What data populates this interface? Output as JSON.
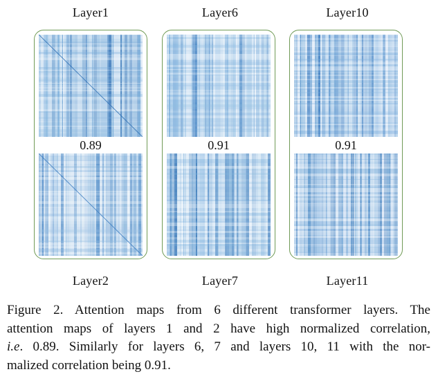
{
  "figure": {
    "pairs": [
      {
        "top_layer": "Layer1",
        "bottom_layer": "Layer2",
        "correlation": "0.89",
        "top_colors": {
          "light": "#e4eef8",
          "mid": "#7fb1dc",
          "dark": "#2d6fb4"
        },
        "bottom_colors": {
          "light": "#e9f1f9",
          "mid": "#9ac1e3",
          "dark": "#3a7cc0"
        }
      },
      {
        "top_layer": "Layer6",
        "bottom_layer": "Layer7",
        "correlation": "0.91",
        "top_colors": {
          "light": "#e6f0f9",
          "mid": "#8dbbe2",
          "dark": "#3a7cc0"
        },
        "bottom_colors": {
          "light": "#e6f0f9",
          "mid": "#86b6df",
          "dark": "#2f72b6"
        }
      },
      {
        "top_layer": "Layer10",
        "bottom_layer": "Layer11",
        "correlation": "0.91",
        "top_colors": {
          "light": "#e3edf8",
          "mid": "#84b4de",
          "dark": "#3a7cc0"
        },
        "bottom_colors": {
          "light": "#e3edf8",
          "mid": "#7fb0dc",
          "dark": "#2f72b6"
        }
      }
    ],
    "border_color": "#6f9a55"
  },
  "caption": {
    "line1": "Figure 2. Attention maps from 6 different transformer layers. The",
    "line2": "attention maps of layers 1 and 2 have high normalized correlation,",
    "line3_italic": "i.e",
    "line3_rest": ". 0.89. Similarly for layers 6, 7 and layers 10, 11 with the nor-",
    "line4": "malized correlation being 0.91."
  }
}
